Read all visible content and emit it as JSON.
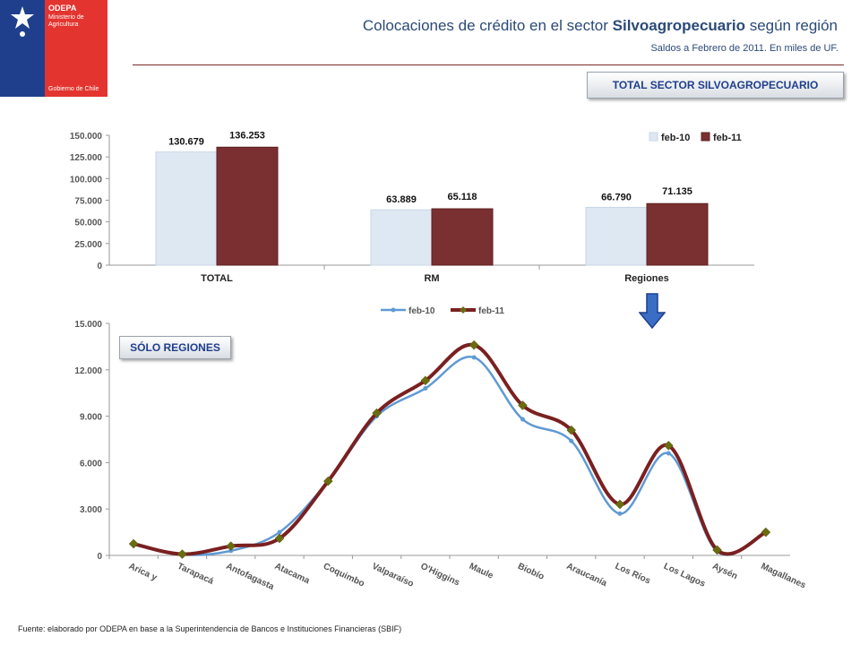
{
  "header": {
    "title_pre": "Colocaciones de crédito en el sector ",
    "title_bold": "Silvoagropecuario",
    "title_post": " según región",
    "subtitle": "Saldos a Febrero de 2011. En miles de UF."
  },
  "logo": {
    "org": "ODEPA",
    "ministry": "Ministerio de Agricultura",
    "gov": "Gobierno de Chile"
  },
  "tags": {
    "total": "TOTAL SECTOR SILVOAGROPECUARIO",
    "regions": "SÓLO REGIONES"
  },
  "footer": "Fuente: elaborado por ODEPA en base a la Superintendencia de Bancos e Instituciones Financieras (SBIF)",
  "colors": {
    "feb10": "#dde8f3",
    "feb11": "#7a3030",
    "line10": "#5f9ad4",
    "line11": "#7a2020",
    "marker": "#6b6b10"
  },
  "chart_data": [
    {
      "type": "bar",
      "categories": [
        "TOTAL",
        "RM",
        "Regiones"
      ],
      "series": [
        {
          "name": "feb-10",
          "values": [
            130679,
            63889,
            66790
          ],
          "labels": [
            "130.679",
            "63.889",
            "66.790"
          ]
        },
        {
          "name": "feb-11",
          "values": [
            136253,
            65118,
            71135
          ],
          "labels": [
            "136.253",
            "65.118",
            "71.135"
          ]
        }
      ],
      "ylim": [
        0,
        150000
      ],
      "yticks": [
        0,
        25000,
        50000,
        75000,
        100000,
        125000,
        150000
      ],
      "ytick_labels": [
        "0",
        "25.000",
        "50.000",
        "75.000",
        "100.000",
        "125.000",
        "150.000"
      ],
      "legend": "top-right",
      "grid": false
    },
    {
      "type": "line",
      "categories": [
        "Arica y",
        "Tarapacá",
        "Antofagasta",
        "Atacama",
        "Coquimbo",
        "Valparaíso",
        "O'Higgins",
        "Maule",
        "Biobío",
        "Araucanía",
        "Los Ríos",
        "Los Lagos",
        "Aysén",
        "Magallanes"
      ],
      "series": [
        {
          "name": "feb-10",
          "values": [
            700,
            50,
            300,
            1500,
            4800,
            9000,
            10800,
            12800,
            8800,
            7400,
            2700,
            6600,
            250,
            1500
          ]
        },
        {
          "name": "feb-11",
          "values": [
            750,
            80,
            600,
            1100,
            4800,
            9200,
            11300,
            13600,
            9700,
            8100,
            3300,
            7100,
            350,
            1500
          ]
        }
      ],
      "ylim": [
        0,
        15000
      ],
      "yticks": [
        0,
        3000,
        6000,
        9000,
        12000,
        15000
      ],
      "ytick_labels": [
        "0",
        "3.000",
        "6.000",
        "9.000",
        "12.000",
        "15.000"
      ],
      "legend": "top-center",
      "grid": false
    }
  ]
}
